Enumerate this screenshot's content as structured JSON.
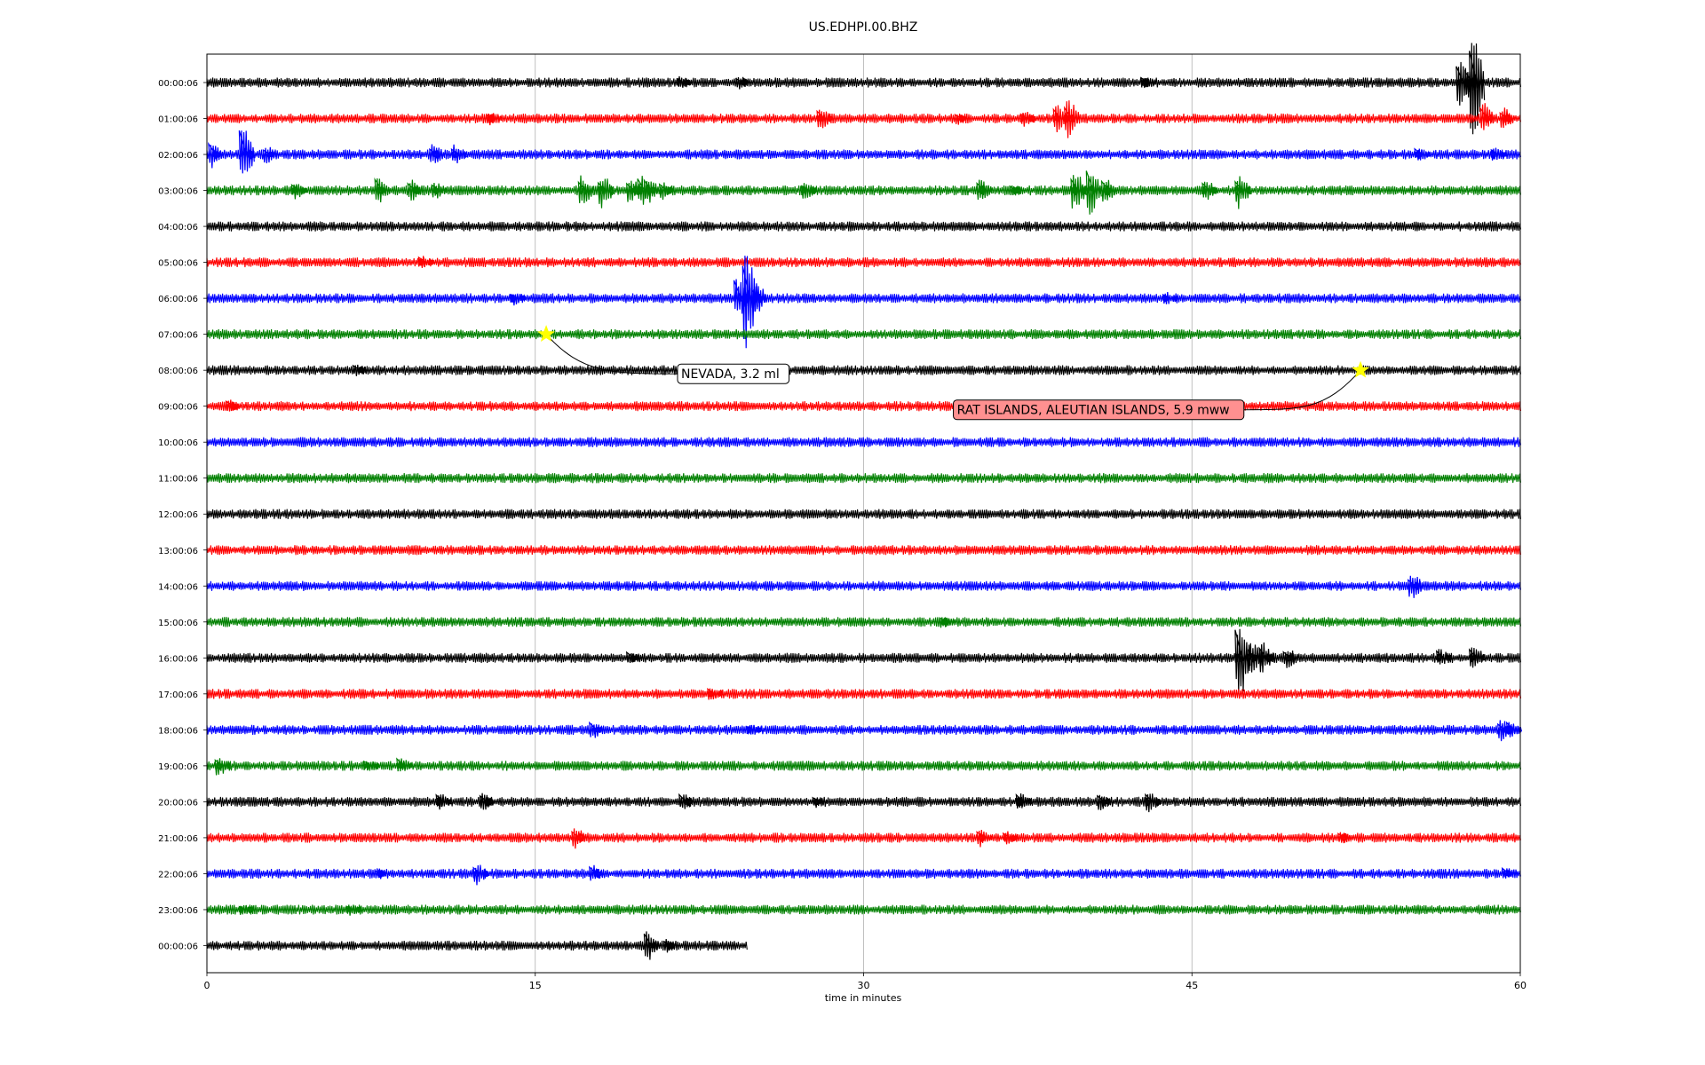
{
  "chart_data": {
    "type": "line",
    "title": "US.EDHPI.00.BHZ",
    "xlabel": "time in minutes",
    "ylabel": "",
    "xlim": [
      0,
      60
    ],
    "xticks": [
      0,
      15,
      30,
      45,
      60
    ],
    "grid": "vertical",
    "trace_colors": [
      "#000000",
      "#ff0000",
      "#0000ff",
      "#008000"
    ],
    "rows": [
      {
        "label": "00:00:06",
        "end_minute": 60,
        "events": [
          {
            "t": 58.0,
            "a": 2.6
          },
          {
            "t": 57.4,
            "a": 1.0
          },
          {
            "t": 57.8,
            "a": 0.8
          },
          {
            "t": 43.0,
            "a": 0.3
          },
          {
            "t": 24.5,
            "a": 0.3
          },
          {
            "t": 21.8,
            "a": 0.3
          }
        ]
      },
      {
        "label": "01:00:06",
        "end_minute": 60,
        "events": [
          {
            "t": 39.5,
            "a": 0.9
          },
          {
            "t": 39.0,
            "a": 0.6
          },
          {
            "t": 28.2,
            "a": 0.5
          },
          {
            "t": 37.5,
            "a": 0.4
          },
          {
            "t": 58.5,
            "a": 0.7
          },
          {
            "t": 59.4,
            "a": 0.5
          },
          {
            "t": 13.1,
            "a": 0.3
          },
          {
            "t": 34.5,
            "a": 0.3
          }
        ]
      },
      {
        "label": "02:00:06",
        "end_minute": 60,
        "events": [
          {
            "t": 1.8,
            "a": 1.3
          },
          {
            "t": 0.4,
            "a": 0.6
          },
          {
            "t": 10.5,
            "a": 0.5
          },
          {
            "t": 11.5,
            "a": 0.5
          },
          {
            "t": 2.9,
            "a": 0.4
          },
          {
            "t": 55.5,
            "a": 0.3
          },
          {
            "t": 59.0,
            "a": 0.3
          }
        ]
      },
      {
        "label": "03:00:06",
        "end_minute": 60,
        "events": [
          {
            "t": 8.0,
            "a": 0.6
          },
          {
            "t": 9.5,
            "a": 0.5
          },
          {
            "t": 10.6,
            "a": 0.4
          },
          {
            "t": 17.3,
            "a": 0.7
          },
          {
            "t": 18.2,
            "a": 0.8
          },
          {
            "t": 19.5,
            "a": 0.6
          },
          {
            "t": 20.0,
            "a": 0.7
          },
          {
            "t": 20.3,
            "a": 0.6
          },
          {
            "t": 21.0,
            "a": 0.4
          },
          {
            "t": 35.5,
            "a": 0.5
          },
          {
            "t": 39.8,
            "a": 0.9
          },
          {
            "t": 40.5,
            "a": 1.1
          },
          {
            "t": 41.2,
            "a": 0.6
          },
          {
            "t": 45.8,
            "a": 0.5
          },
          {
            "t": 47.3,
            "a": 0.8
          },
          {
            "t": 4.2,
            "a": 0.4
          },
          {
            "t": 27.5,
            "a": 0.4
          },
          {
            "t": 37.0,
            "a": 0.3
          }
        ]
      },
      {
        "label": "04:00:06",
        "end_minute": 60,
        "events": []
      },
      {
        "label": "05:00:06",
        "end_minute": 60,
        "events": [
          {
            "t": 10.0,
            "a": 0.3
          }
        ]
      },
      {
        "label": "06:00:06",
        "end_minute": 60,
        "events": [
          {
            "t": 24.8,
            "a": 2.1
          },
          {
            "t": 24.4,
            "a": 1.0
          },
          {
            "t": 25.2,
            "a": 0.8
          },
          {
            "t": 14.2,
            "a": 0.3
          },
          {
            "t": 44.0,
            "a": 0.3
          }
        ]
      },
      {
        "label": "07:00:06",
        "end_minute": 60,
        "events": []
      },
      {
        "label": "08:00:06",
        "end_minute": 60,
        "events": [
          {
            "t": 7.0,
            "a": 0.3
          }
        ]
      },
      {
        "label": "09:00:06",
        "end_minute": 60,
        "events": [
          {
            "t": 1.2,
            "a": 0.3
          }
        ]
      },
      {
        "label": "10:00:06",
        "end_minute": 60,
        "events": []
      },
      {
        "label": "11:00:06",
        "end_minute": 60,
        "events": []
      },
      {
        "label": "12:00:06",
        "end_minute": 60,
        "events": []
      },
      {
        "label": "13:00:06",
        "end_minute": 60,
        "events": []
      },
      {
        "label": "14:00:06",
        "end_minute": 60,
        "events": [
          {
            "t": 55.2,
            "a": 0.6
          }
        ]
      },
      {
        "label": "15:00:06",
        "end_minute": 60,
        "events": [
          {
            "t": 33.8,
            "a": 0.3
          }
        ]
      },
      {
        "label": "16:00:06",
        "end_minute": 60,
        "events": [
          {
            "t": 47.3,
            "a": 2.0
          },
          {
            "t": 47.9,
            "a": 0.8
          },
          {
            "t": 48.4,
            "a": 0.7
          },
          {
            "t": 49.5,
            "a": 0.5
          },
          {
            "t": 58.0,
            "a": 0.6
          },
          {
            "t": 56.5,
            "a": 0.4
          },
          {
            "t": 19.5,
            "a": 0.3
          }
        ]
      },
      {
        "label": "17:00:06",
        "end_minute": 60,
        "events": [
          {
            "t": 23.2,
            "a": 0.3
          }
        ]
      },
      {
        "label": "18:00:06",
        "end_minute": 60,
        "events": [
          {
            "t": 17.8,
            "a": 0.4
          },
          {
            "t": 25.0,
            "a": 0.3
          },
          {
            "t": 59.3,
            "a": 0.5
          },
          {
            "t": 59.7,
            "a": 0.4
          }
        ]
      },
      {
        "label": "19:00:06",
        "end_minute": 60,
        "events": [
          {
            "t": 0.7,
            "a": 0.5
          },
          {
            "t": 7.5,
            "a": 0.3
          },
          {
            "t": 9.0,
            "a": 0.4
          }
        ]
      },
      {
        "label": "20:00:06",
        "end_minute": 60,
        "events": [
          {
            "t": 10.8,
            "a": 0.4
          },
          {
            "t": 12.8,
            "a": 0.4
          },
          {
            "t": 21.9,
            "a": 0.4
          },
          {
            "t": 37.3,
            "a": 0.4
          },
          {
            "t": 41.0,
            "a": 0.4
          },
          {
            "t": 43.2,
            "a": 0.5
          },
          {
            "t": 28.0,
            "a": 0.3
          }
        ]
      },
      {
        "label": "21:00:06",
        "end_minute": 60,
        "events": [
          {
            "t": 17.0,
            "a": 0.5
          },
          {
            "t": 35.5,
            "a": 0.4
          },
          {
            "t": 36.7,
            "a": 0.3
          },
          {
            "t": 52.0,
            "a": 0.3
          }
        ]
      },
      {
        "label": "22:00:06",
        "end_minute": 60,
        "events": [
          {
            "t": 12.5,
            "a": 0.5
          },
          {
            "t": 17.8,
            "a": 0.4
          },
          {
            "t": 8.0,
            "a": 0.3
          },
          {
            "t": 59.5,
            "a": 0.3
          }
        ]
      },
      {
        "label": "23:00:06",
        "end_minute": 60,
        "events": [
          {
            "t": 6.7,
            "a": 0.3
          },
          {
            "t": 1.8,
            "a": 0.3
          }
        ]
      },
      {
        "label": "00:00:06",
        "end_minute": 24.7,
        "events": [
          {
            "t": 20.3,
            "a": 0.7
          },
          {
            "t": 21.2,
            "a": 0.3
          }
        ]
      }
    ],
    "annotations": [
      {
        "text": "NEVADA, 3.2 ml",
        "row": 7,
        "minute": 15.5,
        "box_row": 8.1,
        "box_minute": 21.5,
        "box_fill": "#ffffff"
      },
      {
        "text": "RAT ISLANDS, ALEUTIAN ISLANDS, 5.9 mww",
        "row": 8,
        "minute": 52.7,
        "box_row": 9.1,
        "box_minute": 34.1,
        "box_fill": "#ff9090"
      }
    ]
  }
}
